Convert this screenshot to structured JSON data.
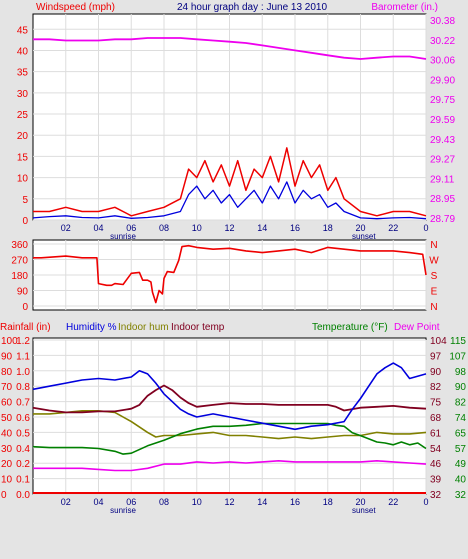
{
  "colors": {
    "windspeed": "#ee0000",
    "windavg": "#0000dd",
    "barometer": "#ee00ee",
    "direction": "#ee0000",
    "rainfall": "#ee0000",
    "humidity": "#0000dd",
    "indoor_hum": "#808000",
    "indoor_temp": "#800020",
    "temperature": "#008000",
    "dew_point": "#ee00ee",
    "background": "#e4e4e4",
    "plot_bg": "#ffffff",
    "grid": "#dddddd"
  },
  "chart_data": [
    {
      "type": "line",
      "title": "24 hour graph day : June 13 2010",
      "left_label": "Windspeed (mph)",
      "right_label": "Barometer (in.)",
      "x_ticks": [
        "02",
        "04",
        "06",
        "08",
        "10",
        "12",
        "14",
        "16",
        "18",
        "20",
        "22",
        "0"
      ],
      "sunrise_label": "sunrise",
      "sunset_label": "sunset",
      "y_left_ticks": [
        "0",
        "5",
        "10",
        "15",
        "20",
        "25",
        "30",
        "35",
        "40",
        "45"
      ],
      "y_right_ticks": [
        "28.79",
        "28.95",
        "29.11",
        "29.27",
        "29.43",
        "29.59",
        "29.75",
        "29.90",
        "30.06",
        "30.22",
        "30.38"
      ],
      "ylim_left": [
        0,
        48.6
      ],
      "ylim_right": [
        28.79,
        30.38
      ],
      "xlim": [
        0,
        24
      ],
      "series": [
        {
          "name": "Windspeed",
          "axis": "left",
          "x": [
            0,
            1,
            2,
            3,
            4,
            5,
            6,
            7,
            8,
            9,
            9.5,
            10,
            10.5,
            11,
            11.5,
            12,
            12.5,
            13,
            13.5,
            14,
            14.5,
            15,
            15.5,
            16,
            16.5,
            17,
            17.5,
            18,
            18.5,
            19,
            20,
            21,
            22,
            23,
            24
          ],
          "y": [
            2,
            2,
            3,
            2,
            2,
            3,
            1,
            2,
            3,
            5,
            12,
            10,
            14,
            9,
            13,
            8,
            14,
            7,
            12,
            10,
            15,
            9,
            17,
            8,
            14,
            10,
            13,
            7,
            10,
            5,
            2,
            1,
            2,
            2,
            1
          ]
        },
        {
          "name": "Wind average",
          "axis": "left",
          "x": [
            0,
            1,
            2,
            3,
            4,
            5,
            6,
            7,
            8,
            9,
            9.5,
            10,
            10.5,
            11,
            11.5,
            12,
            12.5,
            13,
            13.5,
            14,
            14.5,
            15,
            15.5,
            16,
            16.5,
            17,
            17.5,
            18,
            18.5,
            19,
            20,
            21,
            22,
            23,
            24
          ],
          "y": [
            0.5,
            0.8,
            1,
            0.6,
            0.5,
            1,
            0.4,
            0.6,
            1,
            2,
            6,
            8,
            5,
            7,
            4,
            6,
            3,
            5,
            7,
            4,
            8,
            5,
            9,
            4,
            7,
            5,
            6,
            3,
            4,
            2,
            0.5,
            0.3,
            0.5,
            0.6,
            0.3
          ]
        },
        {
          "name": "Barometer",
          "axis": "right",
          "x": [
            0,
            1,
            2,
            3,
            4,
            5,
            6,
            7,
            8,
            9,
            10,
            11,
            12,
            13,
            14,
            15,
            16,
            17,
            18,
            19,
            20,
            21,
            22,
            23,
            24
          ],
          "y": [
            30.24,
            30.24,
            30.23,
            30.23,
            30.23,
            30.24,
            30.24,
            30.25,
            30.25,
            30.25,
            30.24,
            30.23,
            30.22,
            30.21,
            30.19,
            30.17,
            30.15,
            30.13,
            30.11,
            30.09,
            30.08,
            30.09,
            30.1,
            30.1,
            30.08
          ]
        }
      ]
    },
    {
      "type": "line",
      "left_ticks": [
        "0",
        "90",
        "180",
        "270",
        "360"
      ],
      "right_ticks": [
        "N",
        "E",
        "S",
        "W",
        "N"
      ],
      "ylim": [
        0,
        360
      ],
      "xlim": [
        0,
        24
      ],
      "series": [
        {
          "name": "Wind direction",
          "x": [
            0,
            0.5,
            2,
            3,
            3.9,
            4,
            4.5,
            4.8,
            5,
            5.5,
            6,
            6.5,
            6.7,
            7,
            7.2,
            7.3,
            7.5,
            7.7,
            7.9,
            8,
            8.2,
            8.6,
            8.9,
            9.1,
            9.5,
            10,
            11,
            12,
            13,
            14,
            15,
            16,
            17,
            18,
            19,
            20,
            21,
            22,
            23,
            23.8,
            24
          ],
          "y": [
            280,
            280,
            290,
            280,
            280,
            130,
            120,
            120,
            130,
            125,
            190,
            195,
            150,
            150,
            140,
            80,
            20,
            90,
            70,
            160,
            200,
            195,
            265,
            345,
            350,
            340,
            330,
            335,
            320,
            310,
            320,
            330,
            310,
            340,
            330,
            320,
            320,
            320,
            310,
            300,
            180
          ]
        }
      ]
    },
    {
      "type": "line",
      "left_label": "Rainfall (in)",
      "legend": [
        "Humidity %",
        "Indoor hum",
        "Indoor temp",
        "Temperature (°F)",
        "Dew Point"
      ],
      "x_ticks": [
        "02",
        "04",
        "06",
        "08",
        "10",
        "12",
        "14",
        "16",
        "18",
        "20",
        "22",
        "0"
      ],
      "sunrise_label": "sunrise",
      "sunset_label": "sunset",
      "rain_ticks": [
        "0.0",
        "0.1",
        "0.2",
        "0.4",
        "0.5",
        "0.6",
        "0.7",
        "0.8",
        "1.0",
        "1.1",
        "1.2"
      ],
      "hum_ticks": [
        "0",
        "10",
        "20",
        "30",
        "40",
        "50",
        "60",
        "70",
        "80",
        "90",
        "100"
      ],
      "temp_ticks_left": [
        "32",
        "39",
        "46",
        "54",
        "61",
        "68",
        "75",
        "82",
        "90",
        "97",
        "104"
      ],
      "temp_ticks_right": [
        "32",
        "40",
        "49",
        "57",
        "65",
        "74",
        "82",
        "90",
        "98",
        "107",
        "115"
      ],
      "ylim_hum": [
        0,
        100
      ],
      "xlim": [
        0,
        24
      ],
      "series": [
        {
          "name": "Humidity %",
          "unit": "%",
          "x": [
            0,
            1,
            2,
            3,
            4,
            5,
            6,
            6.5,
            7,
            7.5,
            8,
            8.5,
            9,
            9.5,
            10,
            11,
            12,
            13,
            14,
            15,
            16,
            17,
            18,
            19,
            19.5,
            20,
            20.5,
            21,
            21.5,
            22,
            22.5,
            23,
            24
          ],
          "y": [
            68,
            70,
            72,
            74,
            75,
            74,
            76,
            80,
            78,
            72,
            65,
            60,
            55,
            52,
            50,
            52,
            50,
            48,
            46,
            44,
            42,
            44,
            45,
            47,
            55,
            62,
            70,
            78,
            82,
            85,
            82,
            75,
            78
          ]
        },
        {
          "name": "Indoor hum",
          "unit": "%",
          "x": [
            0,
            1,
            2,
            3,
            4,
            5,
            6,
            7,
            7.5,
            8,
            9,
            10,
            11,
            12,
            13,
            14,
            15,
            16,
            17,
            18,
            19,
            20,
            21,
            22,
            23,
            24
          ],
          "y": [
            52,
            52,
            53,
            54,
            54,
            53,
            47,
            40,
            37,
            38,
            38,
            39,
            40,
            38,
            38,
            37,
            36,
            37,
            36,
            37,
            38,
            38,
            40,
            39,
            39,
            40
          ]
        },
        {
          "name": "Indoor temp",
          "unit": "°F",
          "x": [
            0,
            1,
            2,
            3,
            4,
            5,
            6,
            6.5,
            7,
            7.5,
            8,
            8.5,
            9,
            9.5,
            10,
            11,
            12,
            13,
            14,
            15,
            16,
            17,
            18,
            18.5,
            19,
            20,
            21,
            22,
            23,
            24
          ],
          "y": [
            78.5,
            77,
            76,
            76,
            76.5,
            76.5,
            78,
            80,
            85,
            88,
            90.5,
            88,
            84,
            81,
            79,
            80,
            81,
            80.5,
            80.5,
            80,
            80,
            80,
            80,
            79,
            77,
            78.5,
            79,
            79.5,
            78.5,
            78
          ]
        },
        {
          "name": "Temperature (°F)",
          "unit": "°F",
          "x": [
            0,
            1,
            2,
            3,
            4,
            5,
            5.5,
            6,
            7,
            8,
            9,
            10,
            11,
            12,
            13,
            14,
            15,
            16,
            17,
            18,
            18.5,
            19,
            19.5,
            20,
            21,
            21.5,
            22,
            22.5,
            23,
            23.5,
            24
          ],
          "y": [
            57.5,
            57,
            57,
            57,
            56.5,
            55,
            53.5,
            54,
            58,
            61,
            64.5,
            67,
            68.5,
            68.5,
            69,
            70,
            70,
            70,
            70,
            70,
            69,
            68.5,
            65,
            63.5,
            60,
            59.5,
            58.5,
            60,
            58.5,
            59.5,
            56.5
          ]
        },
        {
          "name": "Dew Point",
          "unit": "°F",
          "x": [
            0,
            1,
            2,
            3,
            4,
            5,
            6,
            7,
            8,
            9,
            10,
            11,
            12,
            13,
            14,
            15,
            16,
            17,
            18,
            19,
            20,
            21,
            22,
            23,
            24
          ],
          "y": [
            44,
            44,
            44,
            44,
            43.5,
            43,
            43,
            44,
            46,
            46,
            47,
            46.5,
            47,
            46.5,
            47,
            47.5,
            47,
            47,
            47,
            47,
            47,
            47.5,
            47,
            46.5,
            46
          ]
        },
        {
          "name": "Rainfall",
          "unit": "in",
          "x": [
            0,
            24
          ],
          "y": [
            0,
            0
          ]
        }
      ]
    }
  ]
}
